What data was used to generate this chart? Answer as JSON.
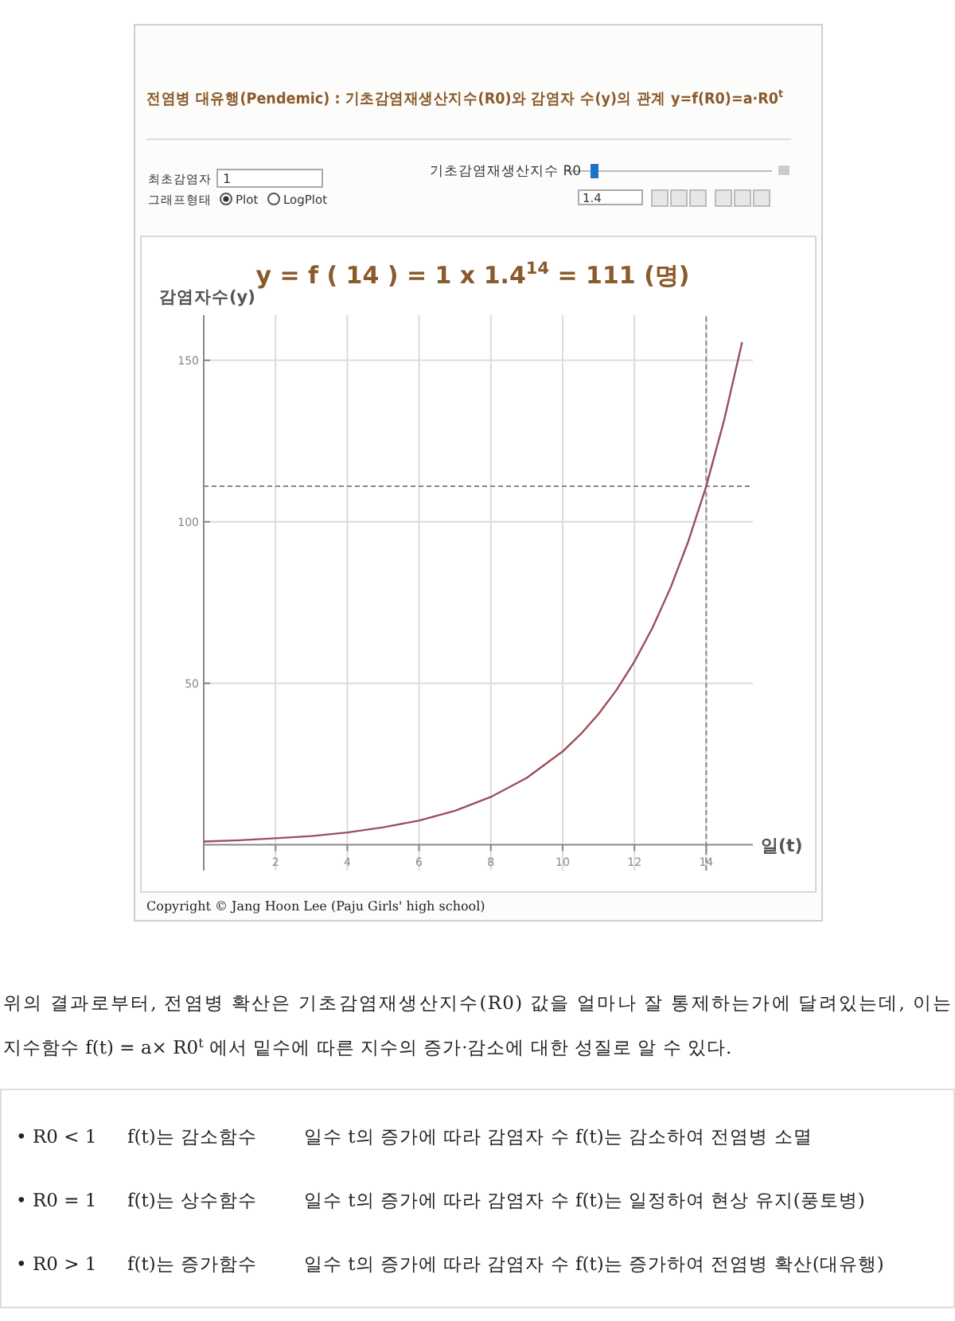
{
  "chart_data": {
    "type": "line",
    "title": "전염병 대유행(Pendemic) : 기초감염재생산지수(R0)와 감염자 수(y)의 관계 y=f(R0)=a·R0$^{t}$",
    "subtitle": "y = f ( 14 ) = 1 x 1.4$^{14}$ = 111 (명)",
    "xlabel": "일(t)",
    "ylabel": "감염자수(y)",
    "x": [
      0,
      1,
      2,
      3,
      4,
      5,
      6,
      7,
      8,
      9,
      10,
      10.5,
      11,
      11.5,
      12,
      12.5,
      13,
      13.5,
      14,
      14.5,
      15
    ],
    "series": [
      {
        "color": "#9b4f5a",
        "values": [
          1,
          1.4,
          2,
          2.7,
          3.8,
          5.4,
          7.5,
          10.5,
          14.8,
          20.7,
          28.9,
          34.2,
          40.5,
          47.9,
          56.7,
          67.1,
          79.4,
          93.9,
          111,
          131.5,
          155.6
        ]
      }
    ],
    "xlim": [
      0,
      15.3
    ],
    "ylim": [
      -8,
      164
    ],
    "xticks": [
      2,
      4,
      6,
      8,
      10,
      12,
      14
    ],
    "yticks": [
      50,
      100,
      150
    ],
    "grid": true,
    "marker": "none",
    "line_style": "solid",
    "ref_lines": [
      {
        "axis": "y",
        "value": 111,
        "label": null,
        "color": "#888888",
        "line_style": "dashed"
      },
      {
        "axis": "x",
        "value": 14,
        "label": null,
        "color": "#888888",
        "line_style": "dashed"
      }
    ],
    "annotations": [
      "최초감염자",
      "1",
      "그래프형태",
      "Plot",
      "LogPlot",
      "기초감염재생산지수 R0",
      "1.4",
      "Copyright © Jang Hoon Lee (Paju Girls' high school)",
      "위의 결과로부터, 전염병 확산은 기초감염재생산지수(R0) 값을 얼마나 잘 통제하는가에 달려있는데, 이는",
      "지수함수 f(t) = a× R0$^{t}$ 에서 밑수에 따른 지수의 증가·감소에 대한 성질로 알 수 있다.",
      "• R0 < 1",
      "f(t)는 감소함수",
      "일수 t의 증가에 따라 감염자 수 f(t)는 감소하여 전염병 소멸",
      "• R0 = 1",
      "f(t)는 상수함수",
      "일수 t의 증가에 따라 감염자 수 f(t)는 일정하여 현상 유지(풍토병)",
      "• R0 > 1",
      "f(t)는 증가함수",
      "일수 t의 증가에 따라 감염자 수 f(t)는 증가하여 전염병 확산(대유행)"
    ]
  }
}
